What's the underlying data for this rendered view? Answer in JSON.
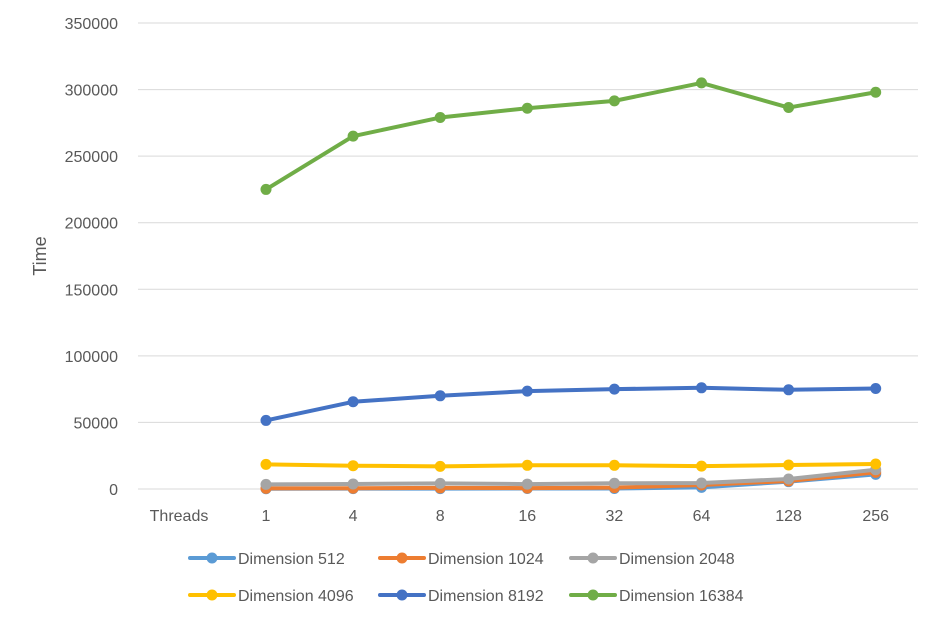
{
  "chart_data": {
    "type": "line",
    "title": "",
    "xlabel": "",
    "ylabel": "Time",
    "category_header": "Threads",
    "categories": [
      "1",
      "4",
      "8",
      "16",
      "32",
      "64",
      "128",
      "256"
    ],
    "ylim": [
      0,
      350000
    ],
    "yticks": [
      0,
      50000,
      100000,
      150000,
      200000,
      250000,
      300000,
      350000
    ],
    "grid": true,
    "legend_position": "bottom",
    "series": [
      {
        "name": "Dimension 512",
        "color": "#5b9bd5",
        "values": [
          200,
          250,
          300,
          350,
          400,
          1200,
          5500,
          11000
        ]
      },
      {
        "name": "Dimension 1024",
        "color": "#ed7d31",
        "values": [
          500,
          600,
          800,
          700,
          1000,
          3000,
          6000,
          12500
        ]
      },
      {
        "name": "Dimension 2048",
        "color": "#a5a5a5",
        "values": [
          3500,
          3800,
          4200,
          3700,
          4300,
          4500,
          7500,
          14500
        ]
      },
      {
        "name": "Dimension 4096",
        "color": "#ffc000",
        "values": [
          18500,
          17500,
          17000,
          17800,
          17800,
          17200,
          18000,
          18800
        ]
      },
      {
        "name": "Dimension 8192",
        "color": "#4472c4",
        "values": [
          51500,
          65500,
          70000,
          73500,
          75000,
          76000,
          74500,
          75500
        ]
      },
      {
        "name": "Dimension 16384",
        "color": "#70ad47",
        "values": [
          225000,
          265000,
          279000,
          286000,
          291500,
          305000,
          286500,
          298000
        ]
      }
    ]
  }
}
